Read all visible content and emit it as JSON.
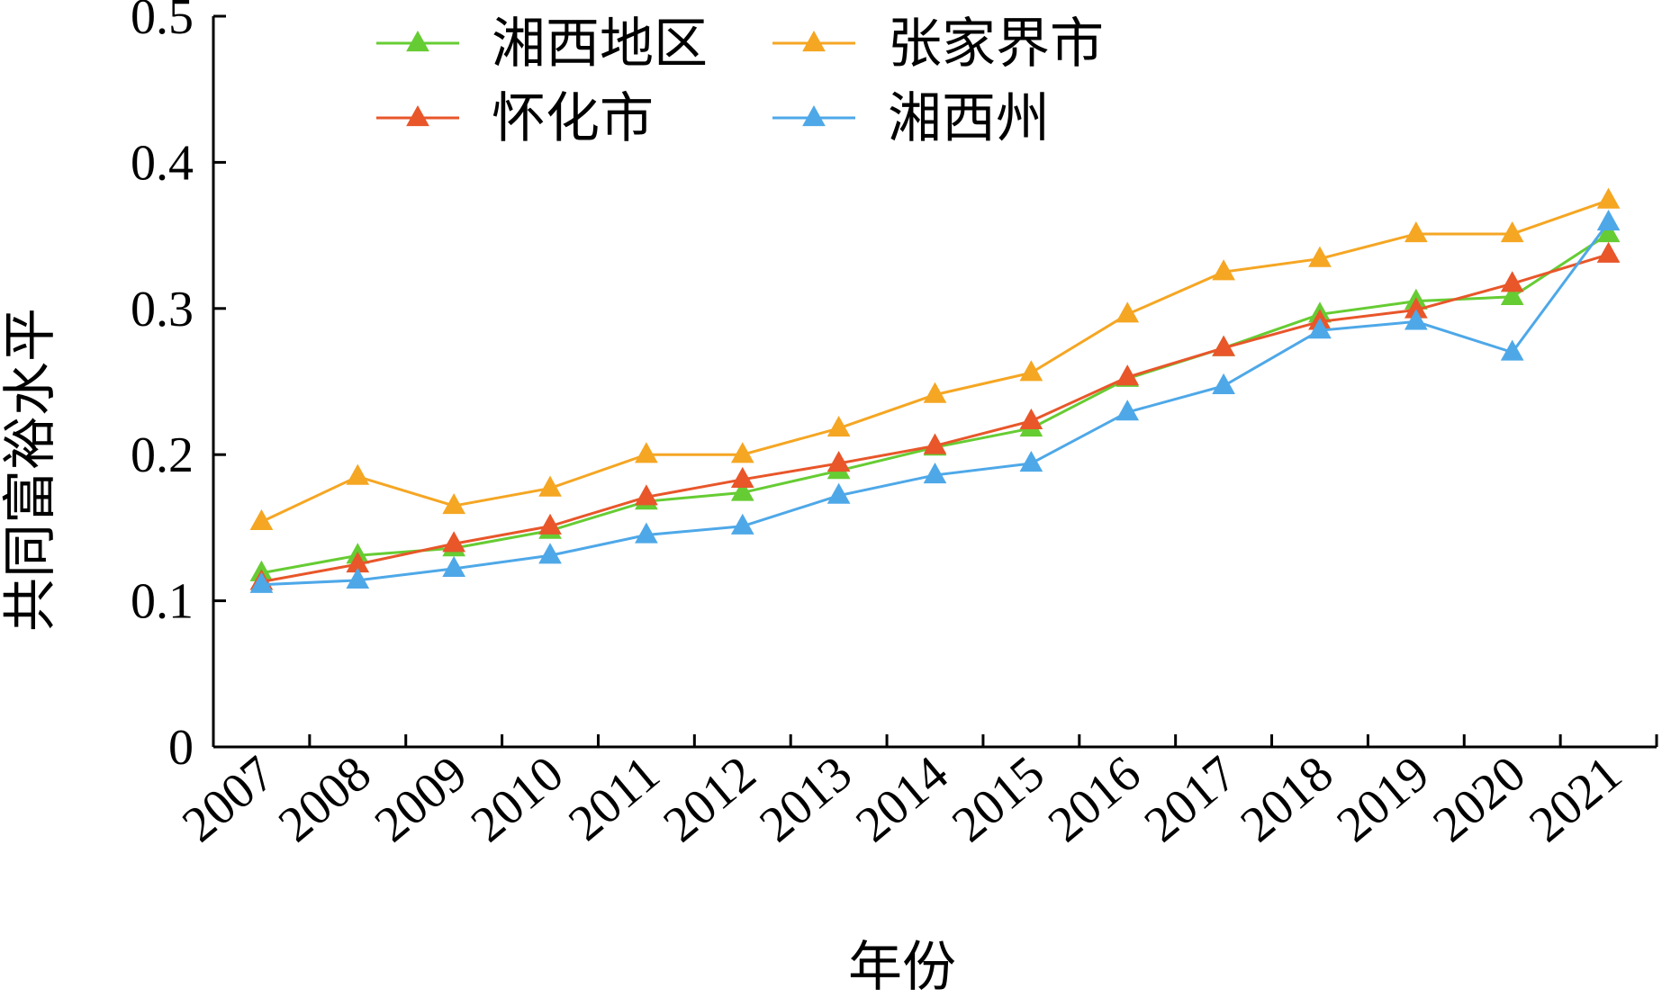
{
  "chart_data": {
    "type": "line",
    "title": "",
    "xlabel": "年份",
    "ylabel": "共同富裕水平",
    "ylim": [
      0,
      0.5
    ],
    "yticks": [
      "0",
      "0.1",
      "0.2",
      "0.3",
      "0.4",
      "0.5"
    ],
    "categories": [
      "2007",
      "2008",
      "2009",
      "2010",
      "2011",
      "2012",
      "2013",
      "2014",
      "2015",
      "2016",
      "2017",
      "2018",
      "2019",
      "2020",
      "2021"
    ],
    "grid": false,
    "legend_position": "top",
    "series": [
      {
        "name": "湘西地区",
        "color": "#66cc33",
        "marker": "triangle",
        "values": [
          0.119,
          0.131,
          0.136,
          0.148,
          0.168,
          0.174,
          0.189,
          0.205,
          0.218,
          0.252,
          0.273,
          0.296,
          0.305,
          0.308,
          0.351
        ]
      },
      {
        "name": "张家界市",
        "color": "#f5a623",
        "marker": "triangle",
        "values": [
          0.154,
          0.185,
          0.165,
          0.177,
          0.2,
          0.2,
          0.218,
          0.241,
          0.256,
          0.296,
          0.325,
          0.334,
          0.351,
          0.351,
          0.374
        ]
      },
      {
        "name": "怀化市",
        "color": "#e8562a",
        "marker": "triangle",
        "values": [
          0.113,
          0.125,
          0.139,
          0.151,
          0.171,
          0.183,
          0.194,
          0.206,
          0.223,
          0.253,
          0.273,
          0.291,
          0.299,
          0.317,
          0.337
        ]
      },
      {
        "name": "湘西州",
        "color": "#4ea8e8",
        "marker": "triangle",
        "values": [
          0.111,
          0.114,
          0.122,
          0.131,
          0.145,
          0.151,
          0.172,
          0.186,
          0.194,
          0.229,
          0.247,
          0.285,
          0.291,
          0.27,
          0.359
        ]
      }
    ]
  }
}
